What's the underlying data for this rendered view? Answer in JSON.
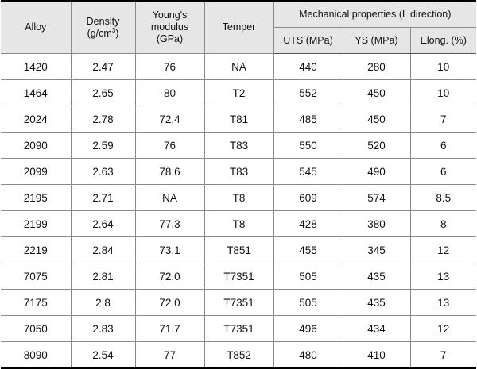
{
  "headers": {
    "alloy": "Alloy",
    "density_line1": "Density",
    "density_line2_pre": "(g/cm",
    "density_sup": "3",
    "density_line2_post": ")",
    "young_line1": "Young's",
    "young_line2": "modulus (GPa)",
    "temper": "Temper",
    "group": "Mechanical properties (L direction)",
    "uts": "UTS (MPa)",
    "ys": "YS (MPa)",
    "elong": "Elong. (%)"
  },
  "rows": [
    [
      "1420",
      "2.47",
      "76",
      "NA",
      "440",
      "280",
      "10"
    ],
    [
      "1464",
      "2.65",
      "80",
      "T2",
      "552",
      "450",
      "10"
    ],
    [
      "2024",
      "2.78",
      "72.4",
      "T81",
      "485",
      "450",
      "7"
    ],
    [
      "2090",
      "2.59",
      "76",
      "T83",
      "550",
      "520",
      "6"
    ],
    [
      "2099",
      "2.63",
      "78.6",
      "T83",
      "545",
      "490",
      "6"
    ],
    [
      "2195",
      "2.71",
      "NA",
      "T8",
      "609",
      "574",
      "8.5"
    ],
    [
      "2199",
      "2.64",
      "77.3",
      "T8",
      "428",
      "380",
      "8"
    ],
    [
      "2219",
      "2.84",
      "73.1",
      "T851",
      "455",
      "345",
      "12"
    ],
    [
      "7075",
      "2.81",
      "72.0",
      "T7351",
      "505",
      "435",
      "13"
    ],
    [
      "7175",
      "2.8",
      "72.0",
      "T7351",
      "505",
      "435",
      "13"
    ],
    [
      "7050",
      "2.83",
      "71.7",
      "T7351",
      "496",
      "434",
      "12"
    ],
    [
      "8090",
      "2.54",
      "77",
      "T852",
      "480",
      "410",
      "7"
    ]
  ],
  "colors": {
    "header_bg": "#e6e6e6",
    "grid": "#8a8a8a",
    "rule": "#000000"
  }
}
